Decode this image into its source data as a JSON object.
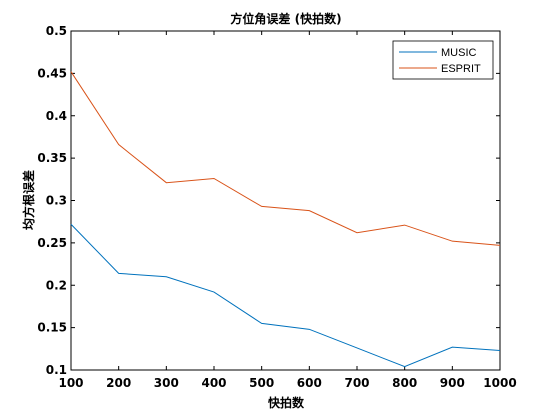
{
  "chart_data": {
    "type": "line",
    "title": "方位角误差 (快拍数)",
    "xlabel": "快拍数",
    "ylabel": "均方根误差",
    "x": [
      100,
      200,
      300,
      400,
      500,
      600,
      700,
      800,
      900,
      1000
    ],
    "xlim": [
      100,
      1000
    ],
    "ylim": [
      0.1,
      0.5
    ],
    "xticks": [
      "100",
      "200",
      "300",
      "400",
      "500",
      "600",
      "700",
      "800",
      "900",
      "1000"
    ],
    "yticks": [
      "0.1",
      "0.15",
      "0.2",
      "0.25",
      "0.3",
      "0.35",
      "0.4",
      "0.45",
      "0.5"
    ],
    "grid": false,
    "legend_position": "top-right",
    "series": [
      {
        "name": "MUSIC",
        "color": "#0072BD",
        "values": [
          0.272,
          0.214,
          0.21,
          0.192,
          0.155,
          0.148,
          0.126,
          0.104,
          0.127,
          0.123
        ]
      },
      {
        "name": "ESPRIT",
        "color": "#D95319",
        "values": [
          0.452,
          0.366,
          0.321,
          0.326,
          0.293,
          0.288,
          0.262,
          0.271,
          0.252,
          0.247
        ]
      }
    ]
  }
}
